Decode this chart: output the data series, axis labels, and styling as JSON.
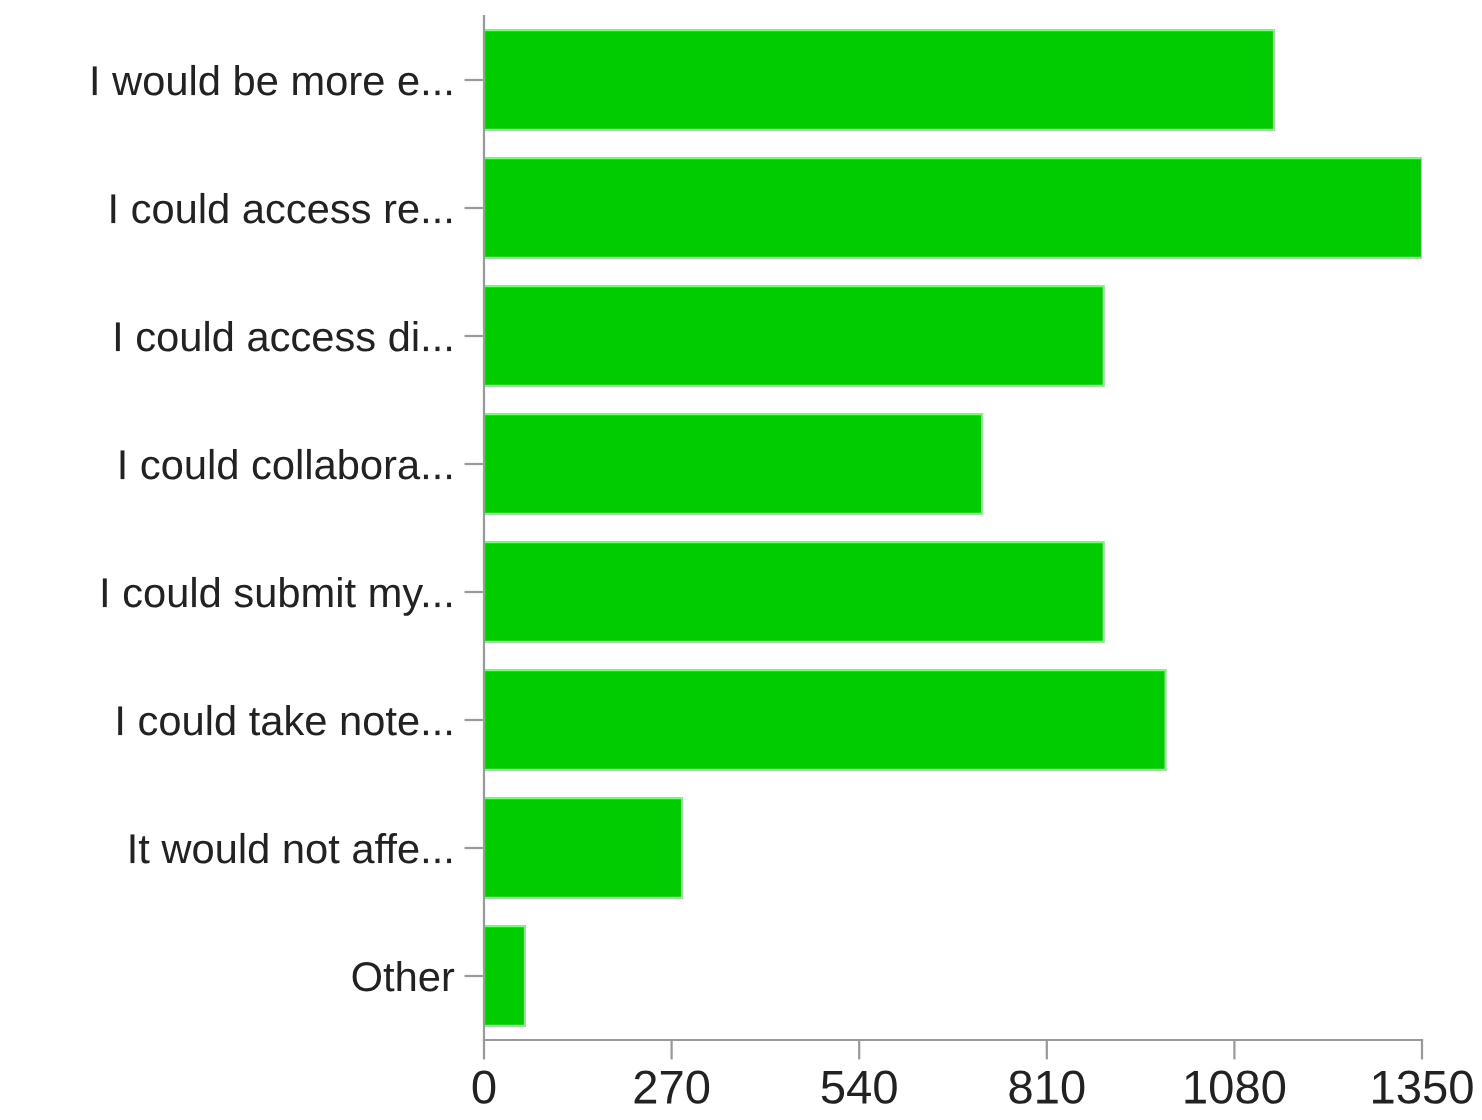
{
  "chart_data": {
    "type": "bar",
    "orientation": "horizontal",
    "categories": [
      "I would be more e...",
      "I could access re...",
      "I could access di...",
      "I could collabora...",
      "I could submit my...",
      "I could take note...",
      "It would not affe...",
      "Other"
    ],
    "values": [
      1137,
      1350,
      892,
      717,
      892,
      981,
      285,
      59
    ],
    "color": "#00cc00",
    "xlim": [
      0,
      1350
    ],
    "xticks": [
      0,
      270,
      540,
      810,
      1080,
      1350
    ],
    "grid": false,
    "legend": false
  }
}
